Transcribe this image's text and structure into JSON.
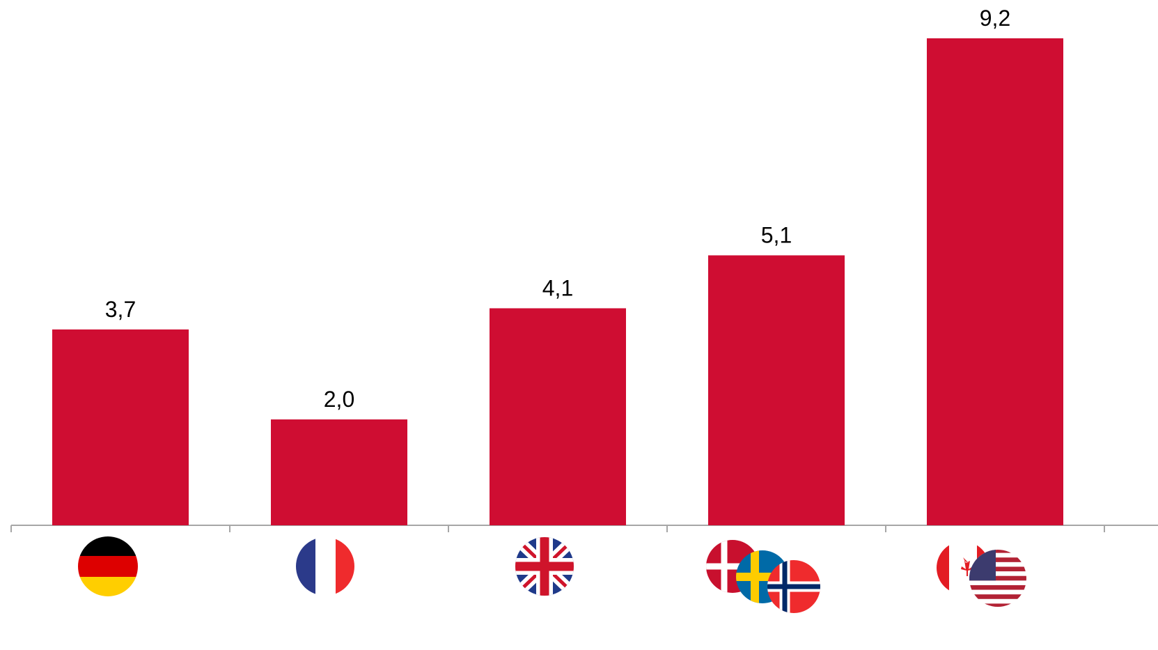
{
  "chart_data": {
    "type": "bar",
    "categories": [
      null,
      null,
      null,
      null,
      null
    ],
    "values": [
      3.7,
      2.0,
      4.1,
      5.1,
      9.2
    ],
    "value_labels": [
      "3,7",
      "2,0",
      "4,1",
      "5,1",
      "9,2"
    ],
    "color": "#cf0d32"
  }
}
